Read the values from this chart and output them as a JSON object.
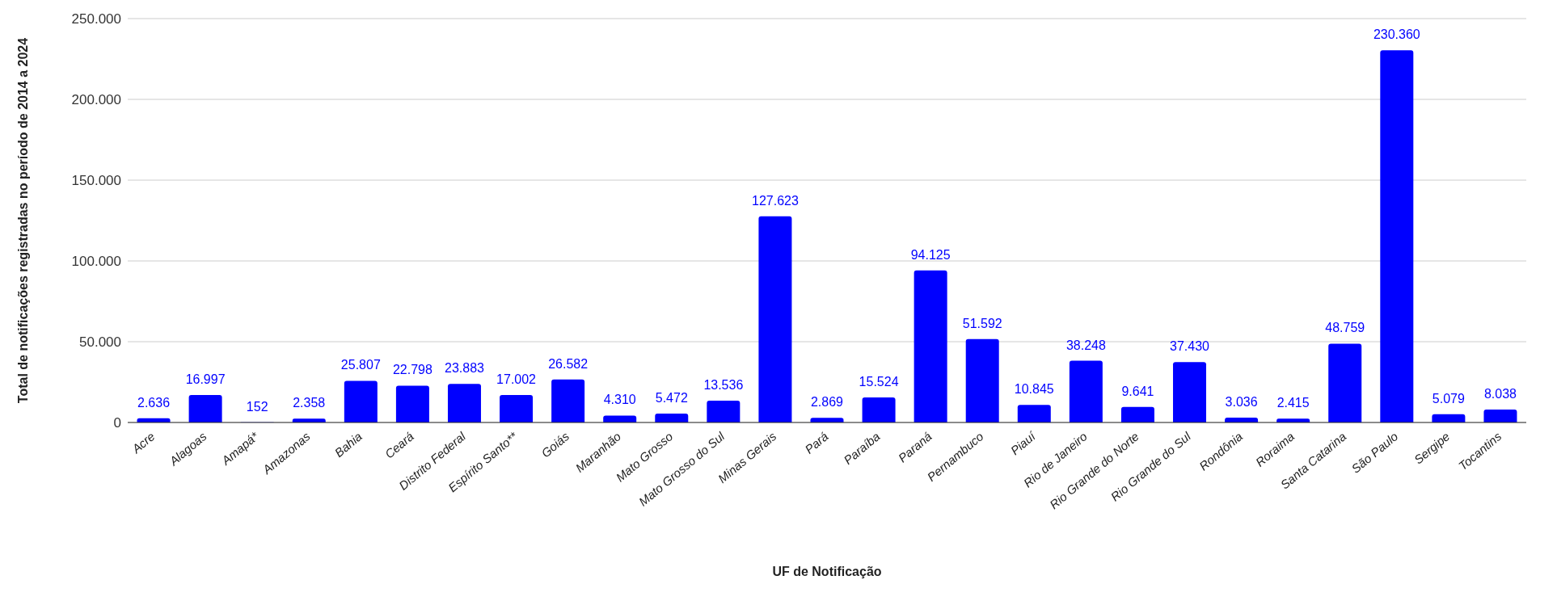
{
  "chart_data": {
    "type": "bar",
    "xlabel": "UF de Notificação",
    "ylabel": "Total de notificações registradas no período de 2014 a 2024",
    "categories": [
      "Acre",
      "Alagoas",
      "Amapá*",
      "Amazonas",
      "Bahia",
      "Ceará",
      "Distrito Federal",
      "Espírito Santo**",
      "Goiás",
      "Maranhão",
      "Mato Grosso",
      "Mato Grosso do Sul",
      "Minas Gerais",
      "Pará",
      "Paraíba",
      "Paraná",
      "Pernambuco",
      "Piauí",
      "Rio de Janeiro",
      "Rio Grande do Norte",
      "Rio Grande do Sul",
      "Rondônia",
      "Roraima",
      "Santa Catarina",
      "São Paulo",
      "Sergipe",
      "Tocantins"
    ],
    "values": [
      2636,
      16997,
      152,
      2358,
      25807,
      22798,
      23883,
      17002,
      26582,
      4310,
      5472,
      13536,
      127623,
      2869,
      15524,
      94125,
      51592,
      10845,
      38248,
      9641,
      37430,
      3036,
      2415,
      48759,
      230360,
      5079,
      8038
    ],
    "value_labels": [
      "2.636",
      "16.997",
      "152",
      "2.358",
      "25.807",
      "22.798",
      "23.883",
      "17.002",
      "26.582",
      "4.310",
      "5.472",
      "13.536",
      "127.623",
      "2.869",
      "15.524",
      "94.125",
      "51.592",
      "10.845",
      "38.248",
      "9.641",
      "37.430",
      "3.036",
      "2.415",
      "48.759",
      "230.360",
      "5.079",
      "8.038"
    ],
    "color": "#0000ff",
    "ylim": [
      0,
      250000
    ],
    "yticks": [
      0,
      {
        "value": 50000,
        "label": "50.000"
      },
      {
        "value": 100000,
        "label": "100.000"
      },
      {
        "value": 150000,
        "label": "150.000"
      },
      {
        "value": 200000,
        "label": "200.000"
      },
      {
        "value": 250000,
        "label": "250.000"
      }
    ],
    "grid": "y"
  }
}
